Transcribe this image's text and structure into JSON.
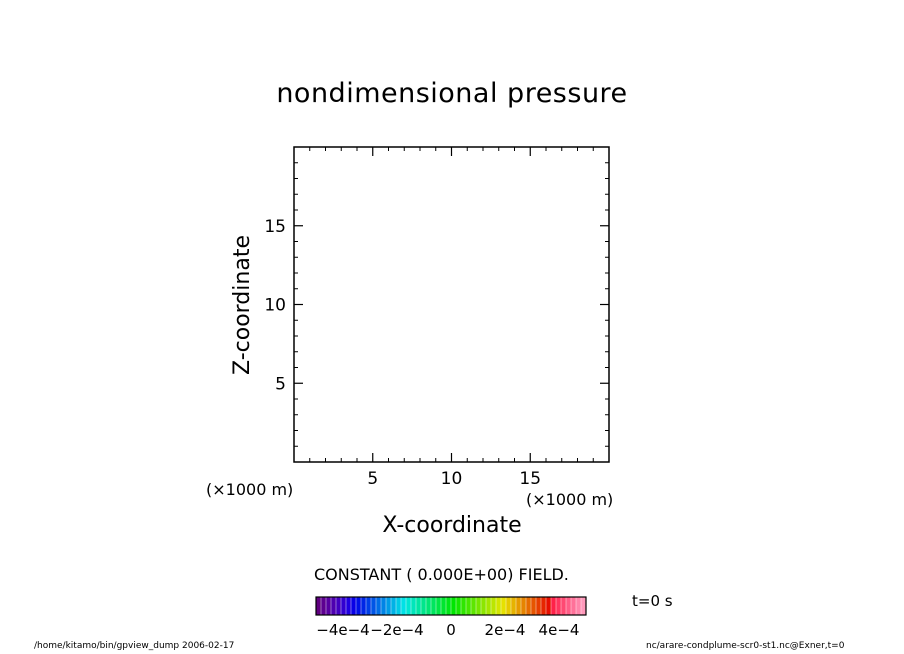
{
  "chart_data": {
    "type": "contour",
    "title": "nondimensional pressure",
    "xlabel": "X-coordinate",
    "ylabel": "Z-coordinate",
    "x_unit_label": "(×1000 m)",
    "y_unit_label": "(×1000 m)",
    "xlim": [
      0,
      20
    ],
    "ylim": [
      0,
      20
    ],
    "x_ticks": [
      5,
      10,
      15
    ],
    "y_ticks": [
      5,
      10,
      15
    ],
    "grid": false,
    "field": "constant",
    "constant_message": "CONSTANT ( 0.000E+00) FIELD.",
    "colorbar": {
      "tick_labels": [
        "−4e−4",
        "−2e−4",
        "0",
        "2e−4",
        "4e−4"
      ],
      "tick_values": [
        -0.0004,
        -0.0002,
        0,
        0.0002,
        0.0004
      ],
      "range": [
        -0.0005,
        0.0005
      ]
    },
    "time_label": "t=0 s"
  },
  "footer": {
    "left": "/home/kitamo/bin/gpview_dump  2006-02-17",
    "right": "nc/arare-condplume-scr0-st1.nc@Exner,t=0"
  }
}
